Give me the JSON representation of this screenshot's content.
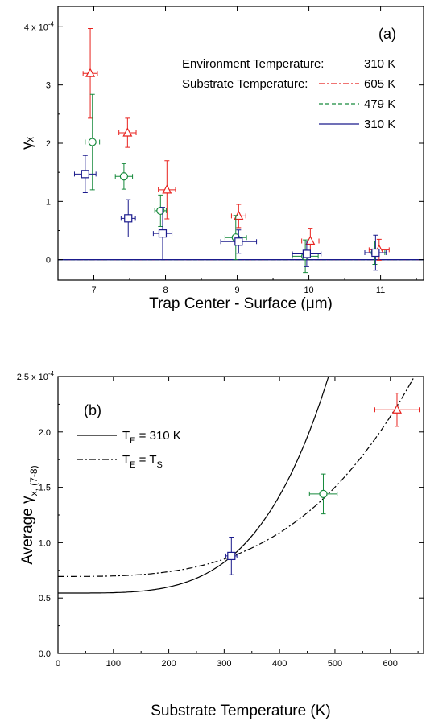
{
  "chart_data": [
    {
      "type": "scatter",
      "panel_label": "(a)",
      "xlabel": "Trap Center - Surface (μm)",
      "ylabel": "γₓ",
      "xlim": [
        6.5,
        11.6
      ],
      "ylim": [
        -0.35,
        4.35
      ],
      "x_ticks": [
        "7",
        "8",
        "9",
        "10",
        "11"
      ],
      "y_ticks": [
        "0",
        "1",
        "2",
        "3"
      ],
      "y_top_label_mant": "4 x 10",
      "y_top_label_exp": "-4",
      "legend": {
        "env_label": "Environment Temperature:",
        "env_value": "310 K",
        "sub_label": "Substrate Temperature:"
      },
      "series": [
        {
          "name": "605 K",
          "color": "#e8221e",
          "marker": "triangle",
          "dash": "7,3,2,3",
          "x": [
            6.95,
            7.47,
            8.02,
            9.02,
            10.02,
            10.98
          ],
          "y": [
            3.2,
            2.18,
            1.2,
            0.75,
            0.32,
            0.17
          ],
          "xerr": [
            0.1,
            0.12,
            0.12,
            0.1,
            0.12,
            0.14
          ],
          "yerr": [
            0.77,
            0.25,
            0.5,
            0.2,
            0.22,
            0.18
          ],
          "fit": {
            "A": 1.3e-07,
            "n": 12,
            "x0": 6.6,
            "x1": 11.6
          }
        },
        {
          "name": "479 K",
          "color": "#178a3c",
          "marker": "circle",
          "dash": "5,3",
          "x": [
            6.98,
            7.42,
            7.93,
            8.98,
            9.95,
            10.92
          ],
          "y": [
            2.02,
            1.43,
            0.84,
            0.38,
            0.06,
            0.12
          ],
          "xerr": [
            0.1,
            0.12,
            0.08,
            0.15,
            0.18,
            0.14
          ],
          "yerr": [
            0.82,
            0.22,
            0.27,
            0.38,
            0.28,
            0.2
          ],
          "fit": {
            "A": 4.3e-08,
            "n": 12,
            "x0": 6.5,
            "x1": 11.6
          }
        },
        {
          "name": "310 K",
          "color": "#1a1a8c",
          "marker": "square",
          "dash": "",
          "x": [
            6.88,
            7.48,
            7.96,
            9.02,
            9.97,
            10.93
          ],
          "y": [
            1.47,
            0.71,
            0.45,
            0.31,
            0.1,
            0.12
          ],
          "xerr": [
            0.15,
            0.1,
            0.13,
            0.25,
            0.2,
            0.15
          ],
          "yerr": [
            0.32,
            0.32,
            0.45,
            0.2,
            0.22,
            0.3
          ],
          "fit": {
            "A": 4.1e-10,
            "n": 14,
            "x0": 6.5,
            "x1": 11.6
          }
        }
      ]
    },
    {
      "type": "scatter",
      "panel_label": "(b)",
      "xlabel": "Substrate Temperature (K)",
      "ylabel": "Average",
      "ylabel_symbol": "γ",
      "ylabel_sub": "x, (7-8)",
      "xlim": [
        0,
        660
      ],
      "ylim": [
        0,
        2.5
      ],
      "x_ticks": [
        "0",
        "100",
        "200",
        "300",
        "400",
        "500",
        "600"
      ],
      "y_ticks": [
        "0.0",
        "0.5",
        "1.0",
        "1.5",
        "2.0"
      ],
      "y_top_label_mant": "2.5 x 10",
      "y_top_label_exp": "-4",
      "legend": [
        {
          "symbol": "T",
          "sub1": "E",
          "text": " = 310 K",
          "sub2": "",
          "style": "solid"
        },
        {
          "symbol": "T",
          "sub1": "E",
          "text": " = T",
          "sub2": "S",
          "style": "dashdot"
        }
      ],
      "points": [
        {
          "x": 313,
          "y": 0.88,
          "xerr": 10,
          "yerr": 0.17,
          "color": "#1a1a8c",
          "marker": "square"
        },
        {
          "x": 479,
          "y": 1.44,
          "xerr": 25,
          "yerr": 0.18,
          "color": "#178a3c",
          "marker": "circle"
        },
        {
          "x": 612,
          "y": 2.2,
          "xerr": 40,
          "yerr": 0.15,
          "color": "#e8221e",
          "marker": "triangle"
        }
      ],
      "curves": [
        {
          "style": "solid",
          "model": "power",
          "a": 0.545,
          "b": 0.33,
          "T0": 313,
          "n": 4,
          "x0": 0,
          "x1": 660
        },
        {
          "style": "dashdot",
          "model": "power",
          "a": 0.695,
          "b": 0.18,
          "T0": 313,
          "n": 3.2,
          "x0": 0,
          "x1": 660
        }
      ]
    }
  ]
}
